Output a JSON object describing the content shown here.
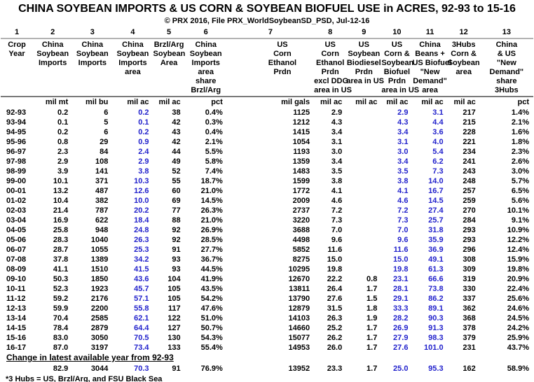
{
  "title": "CHINA SOYBEAN IMPORTS & US CORN & SOYBEAN BIOFUEL USE in ACRES, 92-93 to 15-16",
  "subtitle": "© PRX 2016, File PRX_WorldSoybeanSD_PSD, Jul-12-16",
  "footnote": "*3 Hubs = US, Brzl/Arg, and FSU Black Sea",
  "colors": {
    "highlight_blue": "#2222cc",
    "text": "#000000",
    "rule_gray": "#b3b3b3"
  },
  "table": {
    "column_numbers": [
      "1",
      "2",
      "3",
      "4",
      "5",
      "6",
      "7",
      "8",
      "9",
      "10",
      "11",
      "12",
      "13"
    ],
    "headers": [
      [
        "Crop",
        "Year"
      ],
      [
        "China",
        "Soybean",
        "Imports"
      ],
      [
        "China",
        "Soybean",
        "Imports"
      ],
      [
        "China",
        "Soybean",
        "Imports",
        "area"
      ],
      [
        "Brzl/Arg",
        "Soybean",
        "Area"
      ],
      [
        "China",
        "Soybean",
        "Imports",
        "area",
        "share",
        "Brzl/Arg"
      ],
      [
        "US",
        "Corn",
        "Ethanol",
        "Prdn"
      ],
      [
        "US",
        "Corn",
        "Ethanol",
        "Prdn",
        "excl DDG",
        "area in US"
      ],
      [
        "US",
        "Soybean",
        "Biodiesel",
        "Prdn",
        "area in US"
      ],
      [
        "US",
        "Corn &",
        "Soybean",
        "Biofuel",
        "Prdn",
        "area in US"
      ],
      [
        "China",
        "Beans +",
        "US Biofuel",
        "\"New",
        "Demand\"",
        "area"
      ],
      [
        "3Hubs",
        "Corn &",
        "Soybean",
        "area"
      ],
      [
        "China",
        "& US",
        "\"New",
        "Demand\"",
        "share",
        "3Hubs"
      ]
    ],
    "units": [
      "",
      "mil mt",
      "mil bu",
      "mil ac",
      "mil ac",
      "pct",
      "mil gals",
      "mil ac",
      "mil ac",
      "mil ac",
      "mil ac",
      "mil ac",
      "pct"
    ],
    "blue_column_indexes": [
      3,
      9,
      10
    ],
    "rows": [
      [
        "92-93",
        "0.2",
        "6",
        "0.2",
        "38",
        "0.4%",
        "1125",
        "2.9",
        "",
        "2.9",
        "3.1",
        "217",
        "1.4%"
      ],
      [
        "93-94",
        "0.1",
        "5",
        "0.1",
        "42",
        "0.3%",
        "1212",
        "4.3",
        "",
        "4.3",
        "4.4",
        "215",
        "2.1%"
      ],
      [
        "94-95",
        "0.2",
        "6",
        "0.2",
        "43",
        "0.4%",
        "1415",
        "3.4",
        "",
        "3.4",
        "3.6",
        "228",
        "1.6%"
      ],
      [
        "95-96",
        "0.8",
        "29",
        "0.9",
        "42",
        "2.1%",
        "1054",
        "3.1",
        "",
        "3.1",
        "4.0",
        "221",
        "1.8%"
      ],
      [
        "96-97",
        "2.3",
        "84",
        "2.4",
        "44",
        "5.5%",
        "1193",
        "3.0",
        "",
        "3.0",
        "5.4",
        "234",
        "2.3%"
      ],
      [
        "97-98",
        "2.9",
        "108",
        "2.9",
        "49",
        "5.8%",
        "1359",
        "3.4",
        "",
        "3.4",
        "6.2",
        "241",
        "2.6%"
      ],
      [
        "98-99",
        "3.9",
        "141",
        "3.8",
        "52",
        "7.4%",
        "1483",
        "3.5",
        "",
        "3.5",
        "7.3",
        "243",
        "3.0%"
      ],
      [
        "99-00",
        "10.1",
        "371",
        "10.3",
        "55",
        "18.7%",
        "1599",
        "3.8",
        "",
        "3.8",
        "14.0",
        "248",
        "5.7%"
      ],
      [
        "00-01",
        "13.2",
        "487",
        "12.6",
        "60",
        "21.0%",
        "1772",
        "4.1",
        "",
        "4.1",
        "16.7",
        "257",
        "6.5%"
      ],
      [
        "01-02",
        "10.4",
        "382",
        "10.0",
        "69",
        "14.5%",
        "2009",
        "4.6",
        "",
        "4.6",
        "14.5",
        "259",
        "5.6%"
      ],
      [
        "02-03",
        "21.4",
        "787",
        "20.2",
        "77",
        "26.3%",
        "2737",
        "7.2",
        "",
        "7.2",
        "27.4",
        "270",
        "10.1%"
      ],
      [
        "03-04",
        "16.9",
        "622",
        "18.4",
        "88",
        "21.0%",
        "3220",
        "7.3",
        "",
        "7.3",
        "25.7",
        "284",
        "9.1%"
      ],
      [
        "04-05",
        "25.8",
        "948",
        "24.8",
        "92",
        "26.9%",
        "3688",
        "7.0",
        "",
        "7.0",
        "31.8",
        "293",
        "10.9%"
      ],
      [
        "05-06",
        "28.3",
        "1040",
        "26.3",
        "92",
        "28.5%",
        "4498",
        "9.6",
        "",
        "9.6",
        "35.9",
        "293",
        "12.2%"
      ],
      [
        "06-07",
        "28.7",
        "1055",
        "25.3",
        "91",
        "27.7%",
        "5852",
        "11.6",
        "",
        "11.6",
        "36.9",
        "296",
        "12.4%"
      ],
      [
        "07-08",
        "37.8",
        "1389",
        "34.2",
        "93",
        "36.7%",
        "8275",
        "15.0",
        "",
        "15.0",
        "49.1",
        "308",
        "15.9%"
      ],
      [
        "08-09",
        "41.1",
        "1510",
        "41.5",
        "93",
        "44.5%",
        "10295",
        "19.8",
        "",
        "19.8",
        "61.3",
        "309",
        "19.8%"
      ],
      [
        "09-10",
        "50.3",
        "1850",
        "43.6",
        "104",
        "41.9%",
        "12670",
        "22.2",
        "0.8",
        "23.1",
        "66.6",
        "319",
        "20.9%"
      ],
      [
        "10-11",
        "52.3",
        "1923",
        "45.7",
        "105",
        "43.5%",
        "13811",
        "26.4",
        "1.7",
        "28.1",
        "73.8",
        "330",
        "22.4%"
      ],
      [
        "11-12",
        "59.2",
        "2176",
        "57.1",
        "105",
        "54.2%",
        "13790",
        "27.6",
        "1.5",
        "29.1",
        "86.2",
        "337",
        "25.6%"
      ],
      [
        "12-13",
        "59.9",
        "2200",
        "55.8",
        "117",
        "47.6%",
        "12879",
        "31.5",
        "1.8",
        "33.3",
        "89.1",
        "362",
        "24.6%"
      ],
      [
        "13-14",
        "70.4",
        "2585",
        "62.1",
        "122",
        "51.0%",
        "14103",
        "26.3",
        "1.9",
        "28.2",
        "90.3",
        "368",
        "24.5%"
      ],
      [
        "14-15",
        "78.4",
        "2879",
        "64.4",
        "127",
        "50.7%",
        "14660",
        "25.2",
        "1.7",
        "26.9",
        "91.3",
        "378",
        "24.2%"
      ],
      [
        "15-16",
        "83.0",
        "3050",
        "70.5",
        "130",
        "54.3%",
        "15077",
        "26.2",
        "1.7",
        "27.9",
        "98.3",
        "379",
        "25.9%"
      ],
      [
        "16-17",
        "87.0",
        "3197",
        "73.4",
        "133",
        "55.4%",
        "14953",
        "26.0",
        "1.7",
        "27.6",
        "101.0",
        "231",
        "43.7%"
      ]
    ],
    "change_section": {
      "label": "Change in latest available year from 92-93",
      "row": [
        "",
        "82.9",
        "3044",
        "70.3",
        "91",
        "76.9%",
        "13952",
        "23.3",
        "1.7",
        "25.0",
        "95.3",
        "162",
        "58.9%"
      ]
    }
  }
}
